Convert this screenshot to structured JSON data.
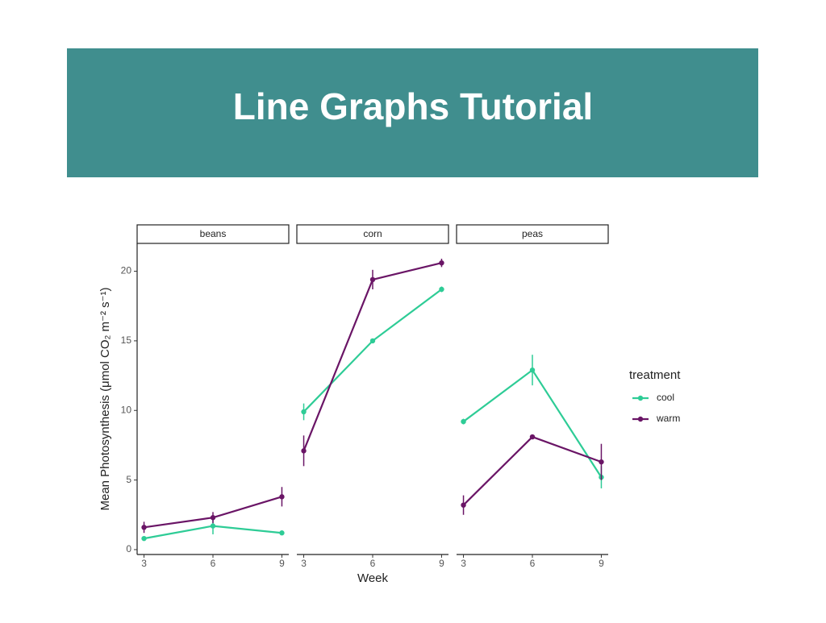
{
  "slide": {
    "title": "Line Graphs Tutorial"
  },
  "chart_data": {
    "type": "line",
    "y_label": "Mean Photosynthesis (μmol CO₂ m⁻² s⁻¹)",
    "x_label": "Week",
    "legend_title": "treatment",
    "facets": [
      "beans",
      "corn",
      "peas"
    ],
    "x": [
      3,
      6,
      9
    ],
    "xlim": [
      2.7,
      9.3
    ],
    "xticks": [
      3,
      6,
      9
    ],
    "ylim": [
      -0.35,
      22
    ],
    "yticks": [
      0,
      5,
      10,
      15,
      20
    ],
    "series": [
      {
        "name": "cool",
        "color": "#2ecc96",
        "values": [
          [
            0.8,
            1.7,
            1.2
          ],
          [
            9.9,
            15.0,
            18.7
          ],
          [
            9.2,
            12.9,
            5.2
          ]
        ],
        "errors": [
          [
            0.1,
            0.6,
            0.15
          ],
          [
            0.6,
            0.1,
            0.2
          ],
          [
            0.2,
            1.1,
            0.8
          ]
        ]
      },
      {
        "name": "warm",
        "color": "#6a1566",
        "values": [
          [
            1.6,
            2.3,
            3.8
          ],
          [
            7.1,
            19.4,
            20.6
          ],
          [
            3.2,
            8.1,
            6.3
          ]
        ],
        "errors": [
          [
            0.4,
            0.4,
            0.7
          ],
          [
            1.1,
            0.7,
            0.3
          ],
          [
            0.7,
            0.1,
            1.3
          ]
        ]
      }
    ]
  }
}
